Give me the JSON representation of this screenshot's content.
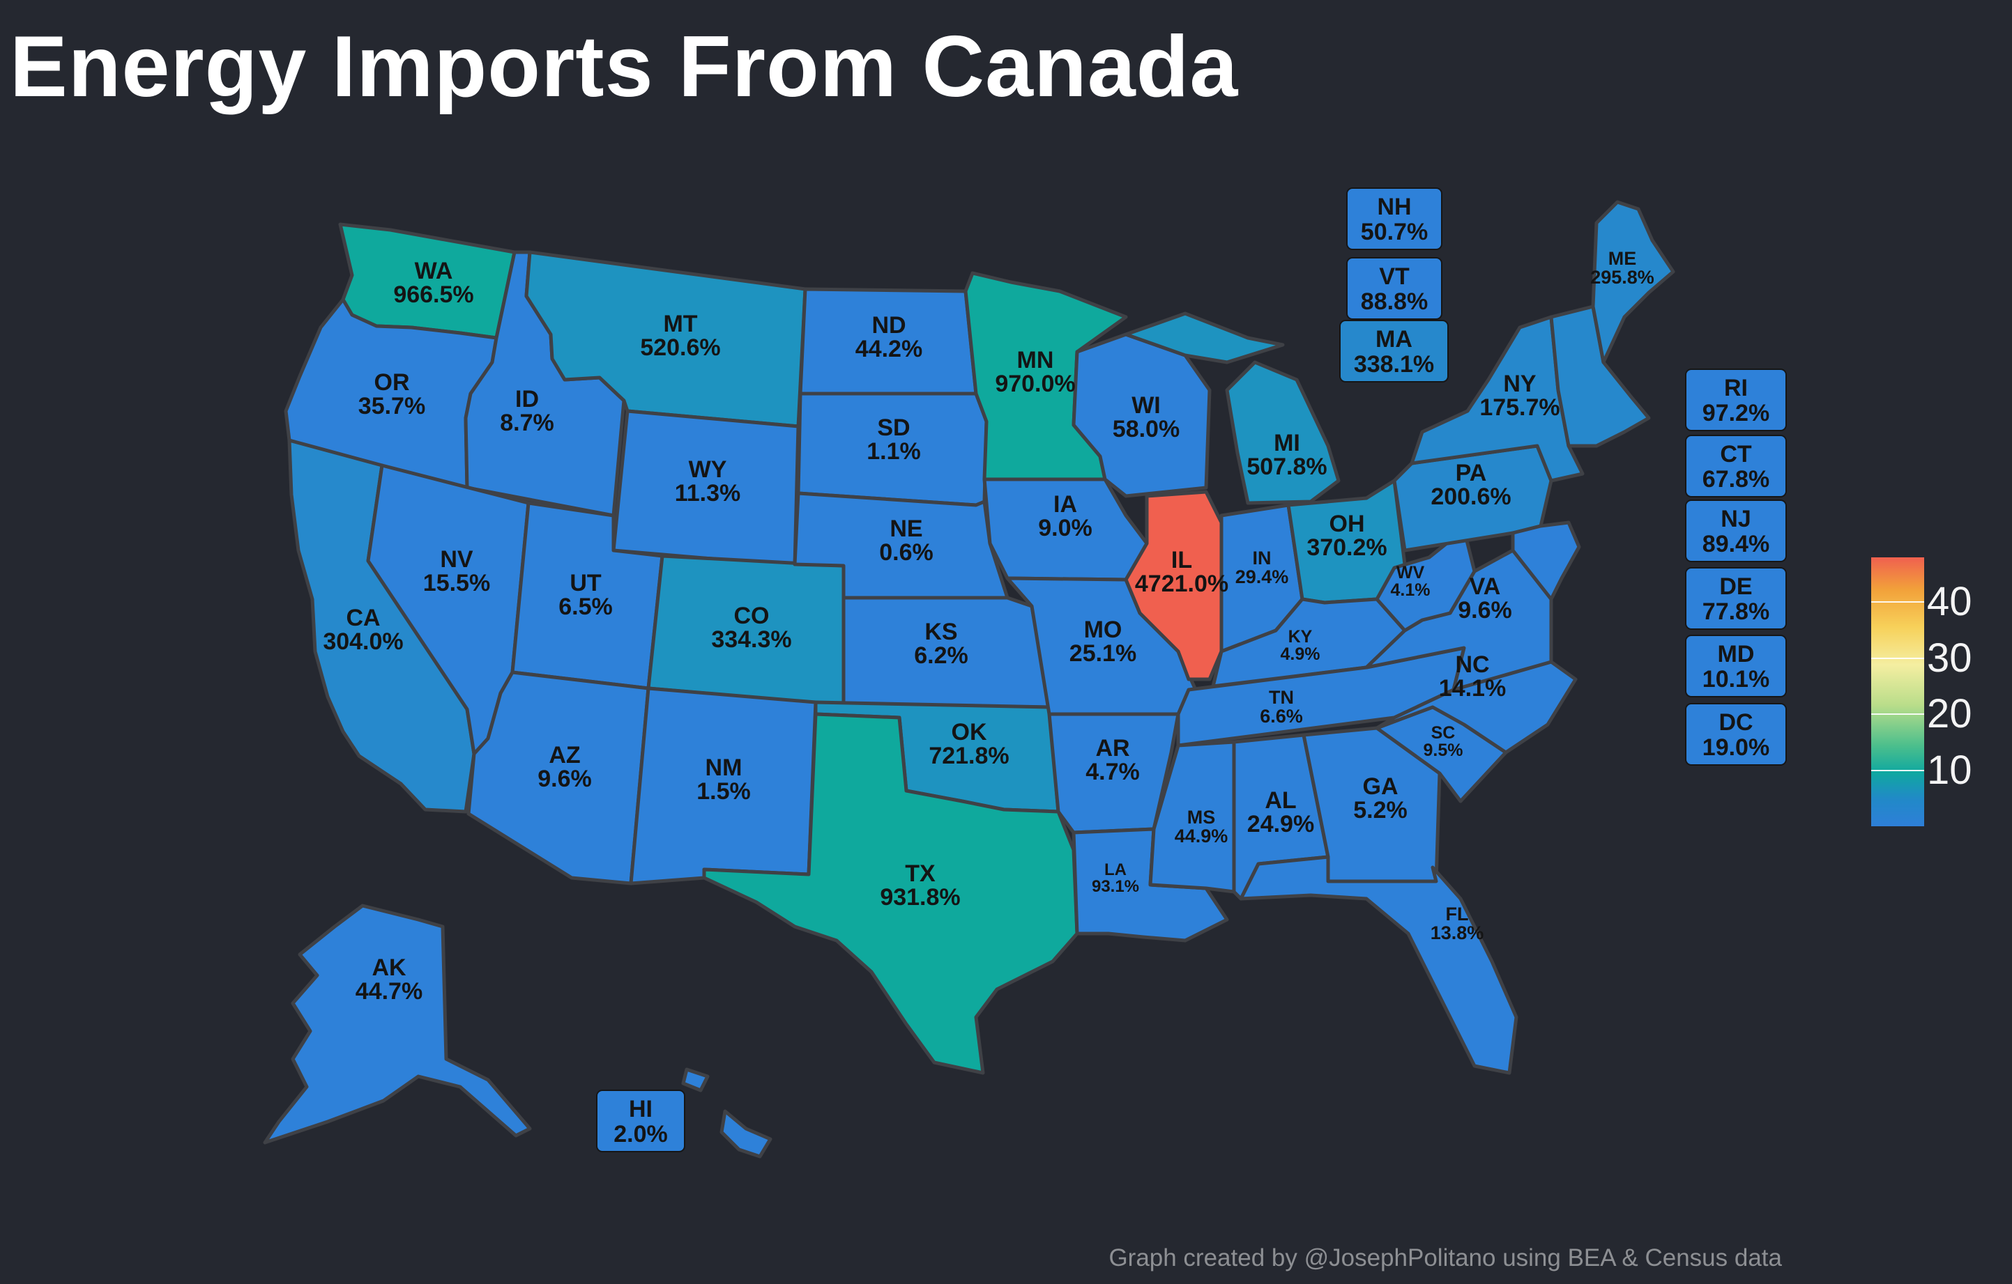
{
  "title": "Energy Imports From Canada",
  "credit": "Graph created by @JosephPolitano using BEA & Census data",
  "legend": {
    "ticks": [
      "40",
      "30",
      "20",
      "10"
    ],
    "tick_values": [
      40,
      30,
      20,
      10
    ],
    "max": 48,
    "min": 0
  },
  "colors": {
    "background": "#252830",
    "border": "#3f4146",
    "low": "#2e81d9",
    "mid_low": "#2688c8",
    "teal": "#0fa99d",
    "high": "#f0604f"
  },
  "states": [
    {
      "abbr": "WA",
      "value": "966.5%"
    },
    {
      "abbr": "OR",
      "value": "35.7%"
    },
    {
      "abbr": "CA",
      "value": "304.0%"
    },
    {
      "abbr": "ID",
      "value": "8.7%"
    },
    {
      "abbr": "NV",
      "value": "15.5%"
    },
    {
      "abbr": "MT",
      "value": "520.6%"
    },
    {
      "abbr": "WY",
      "value": "11.3%"
    },
    {
      "abbr": "UT",
      "value": "6.5%"
    },
    {
      "abbr": "AZ",
      "value": "9.6%"
    },
    {
      "abbr": "CO",
      "value": "334.3%"
    },
    {
      "abbr": "NM",
      "value": "1.5%"
    },
    {
      "abbr": "ND",
      "value": "44.2%"
    },
    {
      "abbr": "SD",
      "value": "1.1%"
    },
    {
      "abbr": "NE",
      "value": "0.6%"
    },
    {
      "abbr": "KS",
      "value": "6.2%"
    },
    {
      "abbr": "OK",
      "value": "721.8%"
    },
    {
      "abbr": "TX",
      "value": "931.8%"
    },
    {
      "abbr": "MN",
      "value": "970.0%"
    },
    {
      "abbr": "IA",
      "value": "9.0%"
    },
    {
      "abbr": "MO",
      "value": "25.1%"
    },
    {
      "abbr": "AR",
      "value": "4.7%"
    },
    {
      "abbr": "LA",
      "value": "93.1%"
    },
    {
      "abbr": "WI",
      "value": "58.0%"
    },
    {
      "abbr": "IL",
      "value": "4721.0%"
    },
    {
      "abbr": "MS",
      "value": "44.9%"
    },
    {
      "abbr": "MI",
      "value": "507.8%"
    },
    {
      "abbr": "IN",
      "value": "29.4%"
    },
    {
      "abbr": "KY",
      "value": "4.9%"
    },
    {
      "abbr": "TN",
      "value": "6.6%"
    },
    {
      "abbr": "AL",
      "value": "24.9%"
    },
    {
      "abbr": "OH",
      "value": "370.2%"
    },
    {
      "abbr": "WV",
      "value": "4.1%"
    },
    {
      "abbr": "VA",
      "value": "9.6%"
    },
    {
      "abbr": "NC",
      "value": "14.1%"
    },
    {
      "abbr": "SC",
      "value": "9.5%"
    },
    {
      "abbr": "GA",
      "value": "5.2%"
    },
    {
      "abbr": "FL",
      "value": "13.8%"
    },
    {
      "abbr": "PA",
      "value": "200.6%"
    },
    {
      "abbr": "NY",
      "value": "175.7%"
    },
    {
      "abbr": "ME",
      "value": "295.8%"
    },
    {
      "abbr": "AK",
      "value": "44.7%"
    }
  ],
  "boxes": [
    {
      "abbr": "NH",
      "value": "50.7%"
    },
    {
      "abbr": "VT",
      "value": "88.8%"
    },
    {
      "abbr": "MA",
      "value": "338.1%"
    },
    {
      "abbr": "RI",
      "value": "97.2%"
    },
    {
      "abbr": "CT",
      "value": "67.8%"
    },
    {
      "abbr": "NJ",
      "value": "89.4%"
    },
    {
      "abbr": "DE",
      "value": "77.8%"
    },
    {
      "abbr": "MD",
      "value": "10.1%"
    },
    {
      "abbr": "DC",
      "value": "19.0%"
    },
    {
      "abbr": "HI",
      "value": "2.0%"
    }
  ]
}
